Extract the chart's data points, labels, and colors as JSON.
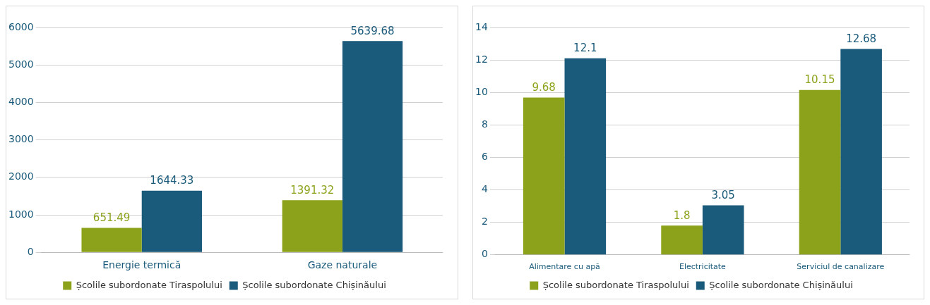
{
  "chart_data": [
    {
      "type": "bar",
      "categories": [
        "Energie termică",
        "Gaze naturale"
      ],
      "series": [
        {
          "name": "Școlile subordonate Tiraspolului",
          "color": "#8ba21a",
          "values": [
            651.49,
            1391.32
          ]
        },
        {
          "name": "Școlile subordonate Chișinăului",
          "color": "#1a5a7a",
          "values": [
            1644.33,
            5639.68
          ]
        }
      ],
      "ylim": [
        0,
        6000
      ],
      "yticks": [
        0,
        1000,
        2000,
        3000,
        4000,
        5000,
        6000
      ],
      "grid": "y",
      "legend": "bottom",
      "data_labels": true
    },
    {
      "type": "bar",
      "categories": [
        "Alimentare cu apă",
        "Electricitate",
        "Serviciul de canalizare"
      ],
      "series": [
        {
          "name": "Școlile subordonate Tiraspolului",
          "color": "#8ba21a",
          "values": [
            9.68,
            1.8,
            10.15
          ]
        },
        {
          "name": "Școlile subordonate Chișinăului",
          "color": "#1a5a7a",
          "values": [
            12.1,
            3.05,
            12.68
          ]
        }
      ],
      "ylim": [
        0,
        14
      ],
      "yticks": [
        0,
        2,
        4,
        6,
        8,
        10,
        12,
        14
      ],
      "grid": "y",
      "legend": "bottom",
      "data_labels": true
    }
  ]
}
